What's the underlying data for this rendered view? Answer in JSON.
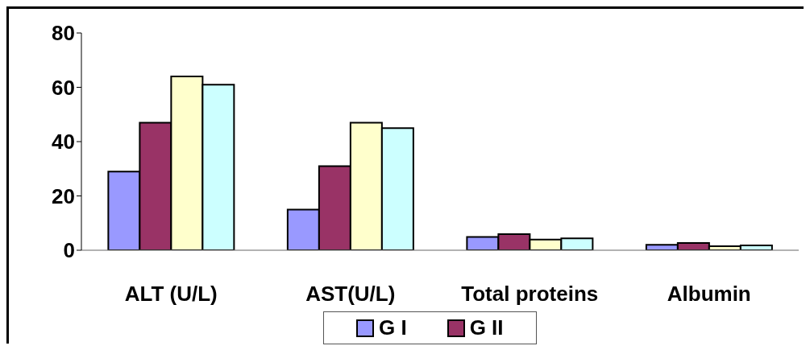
{
  "chart_data": {
    "type": "bar",
    "categories": [
      "ALT (U/L)",
      "AST(U/L)",
      "Total proteins",
      "Albumin"
    ],
    "series": [
      {
        "name": "G I",
        "color": "#9999ff",
        "values": [
          29,
          15,
          4.9,
          2.0
        ]
      },
      {
        "name": "G II",
        "color": "#993366",
        "values": [
          47,
          31,
          5.9,
          2.7
        ]
      },
      {
        "color": "#ffffcc",
        "values": [
          64,
          47,
          3.9,
          1.5
        ]
      },
      {
        "color": "#ccffff",
        "values": [
          61,
          45,
          4.4,
          1.8
        ]
      }
    ],
    "ylim": [
      0,
      80
    ],
    "yticks": [
      0,
      20,
      40,
      60,
      80
    ],
    "grid": false,
    "legend": "bottom"
  }
}
